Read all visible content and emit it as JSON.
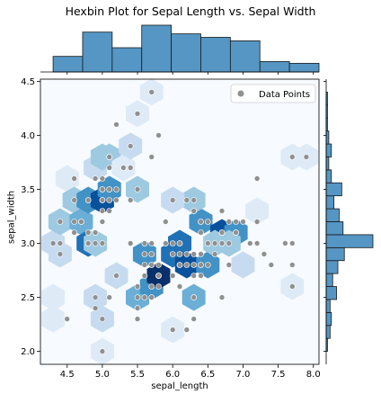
{
  "chart_data": {
    "type": "scatter",
    "title": "Hexbin Plot for Sepal Length vs. Sepal Width",
    "xlabel": "sepal_length",
    "ylabel": "sepal_width",
    "xlim": [
      4.12,
      8.08
    ],
    "ylim": [
      1.88,
      4.52
    ],
    "xticks": [
      "4.5",
      "5.0",
      "5.5",
      "6.0",
      "6.5",
      "7.0",
      "7.5",
      "8.0"
    ],
    "yticks": [
      "2.0",
      "2.5",
      "3.0",
      "3.5",
      "4.0",
      "4.5"
    ],
    "legend": {
      "label": "Data Points",
      "location": "upper right"
    },
    "colors": {
      "points": "#909090",
      "hist_bar": "#5596c4",
      "hist_edge": "#1a1a1a",
      "hex_scale": [
        "#f7fbff",
        "#deebf7",
        "#c6dbef",
        "#9ecae1",
        "#6baed6",
        "#4292c6",
        "#2171b5",
        "#08519c",
        "#08306b"
      ]
    },
    "hexbin": [
      {
        "x": 4.3,
        "y": 2.3,
        "c": 1
      },
      {
        "x": 4.3,
        "y": 2.5,
        "c": 1
      },
      {
        "x": 4.3,
        "y": 3.0,
        "c": 2
      },
      {
        "x": 4.4,
        "y": 2.9,
        "c": 2
      },
      {
        "x": 4.4,
        "y": 3.2,
        "c": 3
      },
      {
        "x": 4.5,
        "y": 3.6,
        "c": 1
      },
      {
        "x": 4.6,
        "y": 3.4,
        "c": 3
      },
      {
        "x": 4.7,
        "y": 3.2,
        "c": 4
      },
      {
        "x": 4.8,
        "y": 3.4,
        "c": 5
      },
      {
        "x": 4.8,
        "y": 3.0,
        "c": 6
      },
      {
        "x": 4.9,
        "y": 3.0,
        "c": 3
      },
      {
        "x": 4.9,
        "y": 2.5,
        "c": 2
      },
      {
        "x": 4.9,
        "y": 3.7,
        "c": 2
      },
      {
        "x": 5.0,
        "y": 3.4,
        "c": 7
      },
      {
        "x": 5.0,
        "y": 2.0,
        "c": 1
      },
      {
        "x": 5.0,
        "y": 2.3,
        "c": 2
      },
      {
        "x": 5.1,
        "y": 3.5,
        "c": 5
      },
      {
        "x": 5.1,
        "y": 3.8,
        "c": 3
      },
      {
        "x": 5.0,
        "y": 3.8,
        "c": 3
      },
      {
        "x": 5.2,
        "y": 2.7,
        "c": 2
      },
      {
        "x": 5.3,
        "y": 3.7,
        "c": 1
      },
      {
        "x": 5.4,
        "y": 3.9,
        "c": 2
      },
      {
        "x": 5.5,
        "y": 4.2,
        "c": 1
      },
      {
        "x": 5.7,
        "y": 4.4,
        "c": 1
      },
      {
        "x": 5.5,
        "y": 2.5,
        "c": 4
      },
      {
        "x": 5.6,
        "y": 2.9,
        "c": 5
      },
      {
        "x": 5.7,
        "y": 2.6,
        "c": 5
      },
      {
        "x": 5.8,
        "y": 2.7,
        "c": 8
      },
      {
        "x": 6.0,
        "y": 2.9,
        "c": 6
      },
      {
        "x": 6.0,
        "y": 2.2,
        "c": 1
      },
      {
        "x": 6.1,
        "y": 3.0,
        "c": 6
      },
      {
        "x": 6.2,
        "y": 2.8,
        "c": 7
      },
      {
        "x": 6.3,
        "y": 2.5,
        "c": 4
      },
      {
        "x": 6.4,
        "y": 3.2,
        "c": 5
      },
      {
        "x": 6.7,
        "y": 3.1,
        "c": 7
      },
      {
        "x": 6.9,
        "y": 3.1,
        "c": 5
      },
      {
        "x": 6.3,
        "y": 3.4,
        "c": 3
      },
      {
        "x": 6.5,
        "y": 2.8,
        "c": 5
      },
      {
        "x": 6.6,
        "y": 3.0,
        "c": 3
      },
      {
        "x": 6.8,
        "y": 3.0,
        "c": 3
      },
      {
        "x": 7.0,
        "y": 2.8,
        "c": 2
      },
      {
        "x": 7.2,
        "y": 3.3,
        "c": 1
      },
      {
        "x": 7.7,
        "y": 3.8,
        "c": 1
      },
      {
        "x": 7.7,
        "y": 2.6,
        "c": 1
      },
      {
        "x": 7.9,
        "y": 3.8,
        "c": 1
      },
      {
        "x": 5.5,
        "y": 3.5,
        "c": 3
      },
      {
        "x": 6.0,
        "y": 3.4,
        "c": 2
      }
    ],
    "points": [
      {
        "x": 5.1,
        "y": 3.5
      },
      {
        "x": 4.9,
        "y": 3.0
      },
      {
        "x": 4.7,
        "y": 3.2
      },
      {
        "x": 4.6,
        "y": 3.1
      },
      {
        "x": 5.0,
        "y": 3.6
      },
      {
        "x": 5.4,
        "y": 3.9
      },
      {
        "x": 4.6,
        "y": 3.4
      },
      {
        "x": 5.0,
        "y": 3.4
      },
      {
        "x": 4.4,
        "y": 2.9
      },
      {
        "x": 4.9,
        "y": 3.1
      },
      {
        "x": 5.4,
        "y": 3.7
      },
      {
        "x": 4.8,
        "y": 3.4
      },
      {
        "x": 4.8,
        "y": 3.0
      },
      {
        "x": 4.3,
        "y": 3.0
      },
      {
        "x": 5.8,
        "y": 4.0
      },
      {
        "x": 5.7,
        "y": 4.4
      },
      {
        "x": 5.4,
        "y": 3.9
      },
      {
        "x": 5.1,
        "y": 3.5
      },
      {
        "x": 5.7,
        "y": 3.8
      },
      {
        "x": 5.1,
        "y": 3.8
      },
      {
        "x": 5.4,
        "y": 3.4
      },
      {
        "x": 5.1,
        "y": 3.7
      },
      {
        "x": 4.6,
        "y": 3.6
      },
      {
        "x": 5.1,
        "y": 3.3
      },
      {
        "x": 4.8,
        "y": 3.4
      },
      {
        "x": 5.0,
        "y": 3.0
      },
      {
        "x": 5.0,
        "y": 3.4
      },
      {
        "x": 5.2,
        "y": 3.5
      },
      {
        "x": 5.2,
        "y": 3.4
      },
      {
        "x": 4.7,
        "y": 3.2
      },
      {
        "x": 4.8,
        "y": 3.1
      },
      {
        "x": 5.4,
        "y": 3.4
      },
      {
        "x": 5.2,
        "y": 4.1
      },
      {
        "x": 5.5,
        "y": 4.2
      },
      {
        "x": 4.9,
        "y": 3.1
      },
      {
        "x": 5.0,
        "y": 3.2
      },
      {
        "x": 5.5,
        "y": 3.5
      },
      {
        "x": 4.9,
        "y": 3.6
      },
      {
        "x": 4.4,
        "y": 3.0
      },
      {
        "x": 5.1,
        "y": 3.4
      },
      {
        "x": 5.0,
        "y": 3.5
      },
      {
        "x": 4.5,
        "y": 2.3
      },
      {
        "x": 4.4,
        "y": 3.2
      },
      {
        "x": 5.0,
        "y": 3.5
      },
      {
        "x": 5.1,
        "y": 3.8
      },
      {
        "x": 4.8,
        "y": 3.0
      },
      {
        "x": 5.1,
        "y": 3.8
      },
      {
        "x": 4.6,
        "y": 3.2
      },
      {
        "x": 5.3,
        "y": 3.7
      },
      {
        "x": 5.0,
        "y": 3.3
      },
      {
        "x": 7.0,
        "y": 3.2
      },
      {
        "x": 6.4,
        "y": 3.2
      },
      {
        "x": 6.9,
        "y": 3.1
      },
      {
        "x": 5.5,
        "y": 2.3
      },
      {
        "x": 6.5,
        "y": 2.8
      },
      {
        "x": 5.7,
        "y": 2.8
      },
      {
        "x": 6.3,
        "y": 3.3
      },
      {
        "x": 4.9,
        "y": 2.4
      },
      {
        "x": 6.6,
        "y": 2.9
      },
      {
        "x": 5.2,
        "y": 2.7
      },
      {
        "x": 5.0,
        "y": 2.0
      },
      {
        "x": 5.9,
        "y": 3.0
      },
      {
        "x": 6.0,
        "y": 2.2
      },
      {
        "x": 6.1,
        "y": 2.9
      },
      {
        "x": 5.6,
        "y": 2.9
      },
      {
        "x": 6.7,
        "y": 3.1
      },
      {
        "x": 5.6,
        "y": 3.0
      },
      {
        "x": 5.8,
        "y": 2.7
      },
      {
        "x": 6.2,
        "y": 2.2
      },
      {
        "x": 5.6,
        "y": 2.5
      },
      {
        "x": 5.9,
        "y": 3.2
      },
      {
        "x": 6.1,
        "y": 2.8
      },
      {
        "x": 6.3,
        "y": 2.5
      },
      {
        "x": 6.1,
        "y": 2.8
      },
      {
        "x": 6.4,
        "y": 2.9
      },
      {
        "x": 6.6,
        "y": 3.0
      },
      {
        "x": 6.8,
        "y": 2.8
      },
      {
        "x": 6.7,
        "y": 3.0
      },
      {
        "x": 6.0,
        "y": 2.9
      },
      {
        "x": 5.7,
        "y": 2.6
      },
      {
        "x": 5.5,
        "y": 2.4
      },
      {
        "x": 5.5,
        "y": 2.4
      },
      {
        "x": 5.8,
        "y": 2.7
      },
      {
        "x": 6.0,
        "y": 2.7
      },
      {
        "x": 5.4,
        "y": 3.0
      },
      {
        "x": 6.0,
        "y": 3.4
      },
      {
        "x": 6.7,
        "y": 3.1
      },
      {
        "x": 6.3,
        "y": 2.3
      },
      {
        "x": 5.6,
        "y": 3.0
      },
      {
        "x": 5.5,
        "y": 2.5
      },
      {
        "x": 5.5,
        "y": 2.6
      },
      {
        "x": 6.1,
        "y": 3.0
      },
      {
        "x": 5.8,
        "y": 2.6
      },
      {
        "x": 5.0,
        "y": 2.3
      },
      {
        "x": 5.6,
        "y": 2.7
      },
      {
        "x": 5.7,
        "y": 3.0
      },
      {
        "x": 5.7,
        "y": 2.9
      },
      {
        "x": 6.2,
        "y": 2.9
      },
      {
        "x": 5.1,
        "y": 2.5
      },
      {
        "x": 5.7,
        "y": 2.8
      },
      {
        "x": 6.3,
        "y": 3.3
      },
      {
        "x": 5.8,
        "y": 2.7
      },
      {
        "x": 7.1,
        "y": 3.0
      },
      {
        "x": 6.3,
        "y": 2.9
      },
      {
        "x": 6.5,
        "y": 3.0
      },
      {
        "x": 7.6,
        "y": 3.0
      },
      {
        "x": 4.9,
        "y": 2.5
      },
      {
        "x": 7.3,
        "y": 2.9
      },
      {
        "x": 6.7,
        "y": 2.5
      },
      {
        "x": 7.2,
        "y": 3.6
      },
      {
        "x": 6.5,
        "y": 3.2
      },
      {
        "x": 6.4,
        "y": 2.7
      },
      {
        "x": 6.8,
        "y": 3.0
      },
      {
        "x": 5.7,
        "y": 2.5
      },
      {
        "x": 5.8,
        "y": 2.8
      },
      {
        "x": 6.4,
        "y": 3.2
      },
      {
        "x": 6.5,
        "y": 3.0
      },
      {
        "x": 7.7,
        "y": 3.8
      },
      {
        "x": 7.7,
        "y": 2.6
      },
      {
        "x": 6.0,
        "y": 2.2
      },
      {
        "x": 6.9,
        "y": 3.2
      },
      {
        "x": 5.6,
        "y": 2.8
      },
      {
        "x": 7.7,
        "y": 2.8
      },
      {
        "x": 6.3,
        "y": 2.7
      },
      {
        "x": 6.7,
        "y": 3.3
      },
      {
        "x": 7.2,
        "y": 3.2
      },
      {
        "x": 6.2,
        "y": 2.8
      },
      {
        "x": 6.1,
        "y": 3.0
      },
      {
        "x": 6.4,
        "y": 2.8
      },
      {
        "x": 7.2,
        "y": 3.0
      },
      {
        "x": 7.4,
        "y": 2.8
      },
      {
        "x": 7.9,
        "y": 3.8
      },
      {
        "x": 6.4,
        "y": 2.8
      },
      {
        "x": 6.3,
        "y": 2.8
      },
      {
        "x": 6.1,
        "y": 2.6
      },
      {
        "x": 7.7,
        "y": 3.0
      },
      {
        "x": 6.3,
        "y": 3.4
      },
      {
        "x": 6.4,
        "y": 3.1
      },
      {
        "x": 6.0,
        "y": 3.0
      },
      {
        "x": 6.9,
        "y": 3.1
      },
      {
        "x": 6.7,
        "y": 3.1
      },
      {
        "x": 6.9,
        "y": 3.1
      },
      {
        "x": 5.8,
        "y": 2.7
      },
      {
        "x": 6.8,
        "y": 3.2
      },
      {
        "x": 6.7,
        "y": 3.3
      },
      {
        "x": 6.7,
        "y": 3.0
      },
      {
        "x": 6.3,
        "y": 2.5
      },
      {
        "x": 6.5,
        "y": 3.0
      },
      {
        "x": 6.2,
        "y": 3.4
      },
      {
        "x": 5.9,
        "y": 3.0
      }
    ],
    "hist_x": {
      "bins": [
        4.3,
        4.72,
        5.14,
        5.56,
        5.98,
        6.4,
        6.82,
        7.24,
        7.66,
        8.08
      ],
      "counts": [
        9,
        23,
        14,
        27,
        22,
        20,
        18,
        6,
        5
      ]
    },
    "hist_y": {
      "bins": [
        2.0,
        2.12,
        2.24,
        2.36,
        2.48,
        2.6,
        2.72,
        2.84,
        2.96,
        3.08,
        3.2,
        3.32,
        3.44,
        3.56,
        3.68,
        3.8,
        3.92,
        4.04,
        4.16,
        4.28,
        4.4
      ],
      "counts": [
        1,
        3,
        4,
        3,
        8,
        5,
        9,
        14,
        36,
        13,
        10,
        6,
        12,
        4,
        2,
        4,
        2,
        1,
        1,
        1
      ]
    }
  }
}
